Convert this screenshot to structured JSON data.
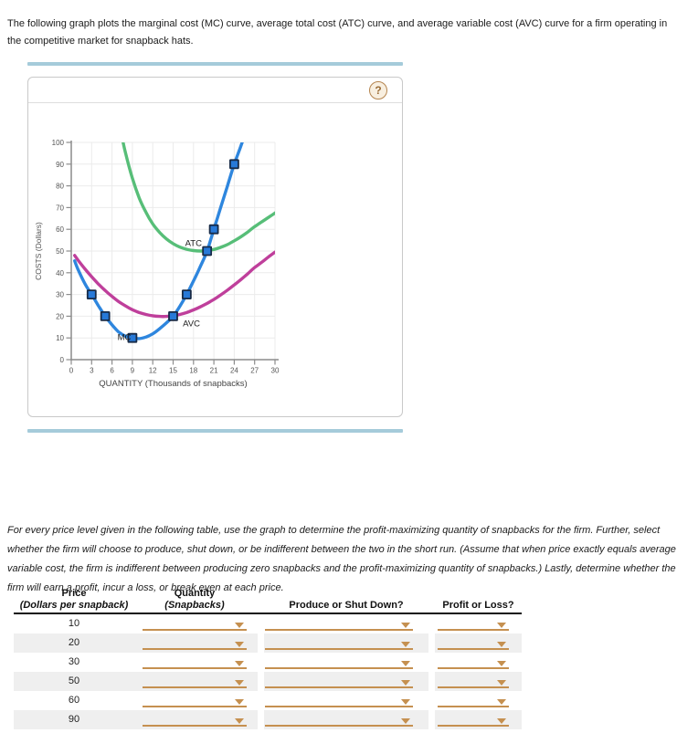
{
  "intro": {
    "text": "The following graph plots the marginal cost (MC) curve, average total cost (ATC) curve, and average variable cost (AVC) curve for a firm operating in the competitive market for snapback hats."
  },
  "panel": {
    "help_label": "?"
  },
  "chart_data": {
    "type": "line",
    "title": "",
    "xlabel": "QUANTITY (Thousands of snapbacks)",
    "ylabel": "COSTS (Dollars)",
    "xlim": [
      0,
      30
    ],
    "ylim": [
      0,
      100
    ],
    "xticks": [
      0,
      3,
      6,
      9,
      12,
      15,
      18,
      21,
      24,
      27,
      30
    ],
    "yticks": [
      0,
      10,
      20,
      30,
      40,
      50,
      60,
      70,
      80,
      90,
      100
    ],
    "grid": true,
    "legend_position": "inline-labels",
    "marker_style": {
      "fill": "#2779d8",
      "stroke": "#182b47"
    },
    "series": [
      {
        "name": "MC",
        "color": "#2e86de",
        "label_pos": [
          7.8,
          10.2
        ],
        "points": [
          [
            0.5,
            45.5
          ],
          [
            1,
            41.5
          ],
          [
            2,
            35
          ],
          [
            3,
            30
          ],
          [
            4,
            24.8
          ],
          [
            5,
            20
          ],
          [
            6,
            16
          ],
          [
            7,
            12.7
          ],
          [
            8,
            10.8
          ],
          [
            9,
            10
          ],
          [
            10,
            9.7
          ],
          [
            11,
            10.4
          ],
          [
            12,
            11.9
          ],
          [
            13,
            14.2
          ],
          [
            14,
            16.9
          ],
          [
            15,
            20
          ],
          [
            16,
            24.6
          ],
          [
            17,
            30
          ],
          [
            18,
            36.2
          ],
          [
            19,
            42.8
          ],
          [
            20,
            50
          ],
          [
            21,
            60
          ],
          [
            22,
            70
          ],
          [
            23,
            80
          ],
          [
            24,
            90
          ],
          [
            25,
            98.5
          ],
          [
            25.6,
            104
          ]
        ],
        "markers": [
          [
            3,
            30
          ],
          [
            5,
            20
          ],
          [
            9,
            10
          ],
          [
            15,
            20
          ],
          [
            17,
            30
          ],
          [
            20,
            50
          ],
          [
            21,
            60
          ],
          [
            24,
            90
          ]
        ]
      },
      {
        "name": "ATC",
        "color": "#57be78",
        "label_pos": [
          18,
          53.6
        ],
        "points": [
          [
            7.5,
            102
          ],
          [
            8,
            95
          ],
          [
            9,
            83.5
          ],
          [
            10,
            74.5
          ],
          [
            11,
            67.8
          ],
          [
            12,
            62.5
          ],
          [
            13,
            58.6
          ],
          [
            14,
            55.6
          ],
          [
            15,
            53.4
          ],
          [
            16,
            51.8
          ],
          [
            17,
            50.8
          ],
          [
            18,
            50.2
          ],
          [
            19,
            50
          ],
          [
            20,
            50.1
          ],
          [
            21,
            50.7
          ],
          [
            22,
            51.7
          ],
          [
            23,
            53
          ],
          [
            24,
            54.7
          ],
          [
            25,
            56.6
          ],
          [
            26,
            58.8
          ],
          [
            27,
            61.2
          ],
          [
            28,
            63.3
          ],
          [
            29,
            65.4
          ],
          [
            30,
            67.5
          ]
        ],
        "markers": []
      },
      {
        "name": "AVC",
        "color": "#bf3f9b",
        "label_pos": [
          17.7,
          16.5
        ],
        "points": [
          [
            0.5,
            48
          ],
          [
            1,
            45.8
          ],
          [
            2,
            41.8
          ],
          [
            3,
            38.2
          ],
          [
            4,
            34.8
          ],
          [
            5,
            31.8
          ],
          [
            6,
            29.1
          ],
          [
            7,
            26.7
          ],
          [
            8,
            24.7
          ],
          [
            9,
            23
          ],
          [
            10,
            21.7
          ],
          [
            11,
            20.8
          ],
          [
            12,
            20.2
          ],
          [
            13,
            19.9
          ],
          [
            14,
            19.9
          ],
          [
            15,
            20.2
          ],
          [
            16,
            20.8
          ],
          [
            17,
            21.7
          ],
          [
            18,
            22.9
          ],
          [
            19,
            24.3
          ],
          [
            20,
            25.9
          ],
          [
            21,
            27.7
          ],
          [
            22,
            29.8
          ],
          [
            23,
            32
          ],
          [
            24,
            34.4
          ],
          [
            25,
            36.9
          ],
          [
            26,
            39.6
          ],
          [
            27,
            42.4
          ],
          [
            28,
            44.7
          ],
          [
            29,
            47.2
          ],
          [
            30,
            49.5
          ]
        ],
        "markers": []
      }
    ]
  },
  "instructions": {
    "text": "For every price level given in the following table, use the graph to determine the profit-maximizing quantity of snapbacks for the firm. Further, select whether the firm will choose to produce, shut down, or be indifferent between the two in the short run. (Assume that when price exactly equals average variable cost, the firm is indifferent between producing zero snapbacks and the profit-maximizing quantity of snapbacks.) Lastly, determine whether the firm will earn a profit, incur a loss, or break even at each price."
  },
  "table": {
    "headers": {
      "price_line1": "Price",
      "price_line2": "(Dollars per snapback)",
      "quantity_line1": "Quantity",
      "quantity_line2": "(Snapbacks)",
      "produce": "Produce or Shut Down?",
      "profit": "Profit or Loss?"
    },
    "rows": [
      {
        "price": "10"
      },
      {
        "price": "20"
      },
      {
        "price": "30"
      },
      {
        "price": "50"
      },
      {
        "price": "60"
      },
      {
        "price": "90"
      }
    ]
  },
  "colors": {
    "teal_bar": "#a5cbda",
    "dropdown": "#c59050",
    "row_alt": "#efefef",
    "grid": "#ebebeb",
    "axis": "#8c8c8c"
  }
}
